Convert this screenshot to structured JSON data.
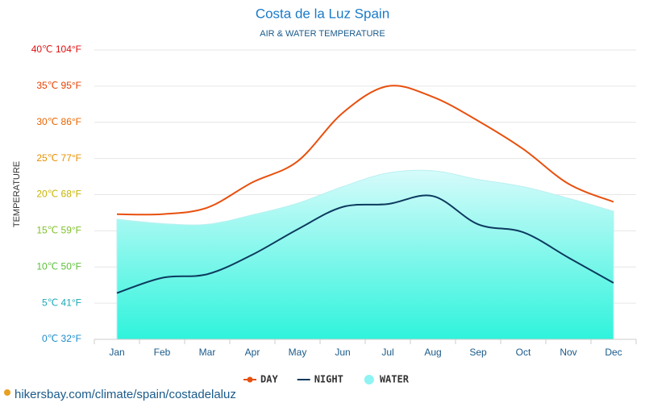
{
  "chart_data": {
    "type": "line",
    "title": "Costa de la Luz Spain",
    "subtitle": "AIR & WATER TEMPERATURE",
    "y_label": "TEMPERATURE",
    "source": "hikersbay.com/climate/spain/costadelaluz",
    "categories": [
      "Jan",
      "Feb",
      "Mar",
      "Apr",
      "May",
      "Jun",
      "Jul",
      "Aug",
      "Sep",
      "Oct",
      "Nov",
      "Dec"
    ],
    "series": [
      {
        "name": "DAY",
        "color": "#e8500e",
        "values": [
          17.3,
          17.3,
          18.2,
          21.7,
          24.6,
          31.3,
          35,
          33.5,
          30.2,
          26.3,
          21.5,
          19
        ]
      },
      {
        "name": "NIGHT",
        "color": "#0c3a5e",
        "values": [
          6.4,
          8.5,
          9.0,
          11.7,
          15.2,
          18.3,
          18.7,
          19.8,
          15.9,
          14.8,
          11.3,
          7.8
        ]
      },
      {
        "name": "WATER",
        "color": "#8ff3f3",
        "area": true,
        "values": [
          16.6,
          16.0,
          15.9,
          17.2,
          18.8,
          21.1,
          23.0,
          23.3,
          22.1,
          21.1,
          19.5,
          17.7
        ]
      }
    ],
    "ylim": [
      0,
      40
    ],
    "yticks": [
      {
        "value": 0,
        "label": "0℃ 32°F"
      },
      {
        "value": 5,
        "label": "5℃ 41°F"
      },
      {
        "value": 10,
        "label": "10℃ 50°F"
      },
      {
        "value": 15,
        "label": "15℃ 59°F"
      },
      {
        "value": 20,
        "label": "20℃ 68°F"
      },
      {
        "value": 25,
        "label": "25℃ 77°F"
      },
      {
        "value": 30,
        "label": "30℃ 86°F"
      },
      {
        "value": 35,
        "label": "35℃ 95°F"
      },
      {
        "value": 40,
        "label": "40℃ 104°F"
      }
    ],
    "ytick_colors": [
      "#1a8ccc",
      "#1aa8b8",
      "#5cc03a",
      "#7fc02a",
      "#c8b400",
      "#e89000",
      "#e86400",
      "#e84000",
      "#e01010"
    ],
    "grid": true
  }
}
